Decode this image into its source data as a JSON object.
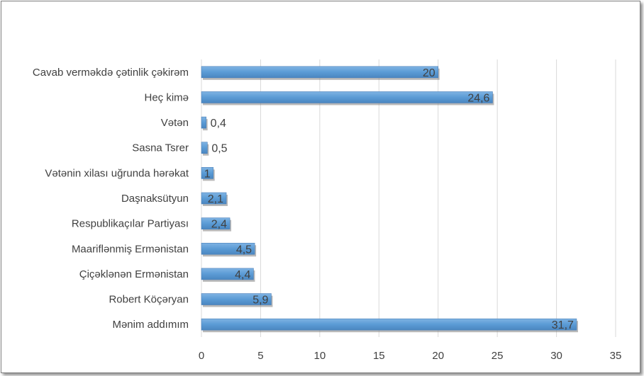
{
  "chart_data": {
    "type": "bar",
    "orientation": "horizontal",
    "categories": [
      "Cavab verməkdə çətinlik çəkirəm",
      "Heç kimə",
      "Vətən",
      "Sasna Tsrer",
      "Vətənin xilası uğrunda hərəkat",
      "Daşnaksütyun",
      "Respublikaçılar Partiyası",
      "Maariflənmiş Ermənistan",
      "Çiçəklənən Ermənistan",
      "Robert Köçəryan",
      "Mənim addımım"
    ],
    "values": [
      20,
      24.6,
      0.4,
      0.5,
      1,
      2.1,
      2.4,
      4.5,
      4.4,
      5.9,
      31.7
    ],
    "data_labels": [
      "20",
      "24,6",
      "0,4",
      "0,5",
      "1",
      "2,1",
      "2,4",
      "4,5",
      "4,4",
      "5,9",
      "31,7"
    ],
    "xlim": [
      0,
      35
    ],
    "x_ticks": [
      "0",
      "5",
      "10",
      "15",
      "20",
      "25",
      "30",
      "35"
    ],
    "grid": true,
    "legend": "none",
    "bar_color": "#5b9bd5",
    "bar_shadow_color": "#7f7f7f",
    "grid_color": "#d9d9d9",
    "label_color": "#404040"
  }
}
